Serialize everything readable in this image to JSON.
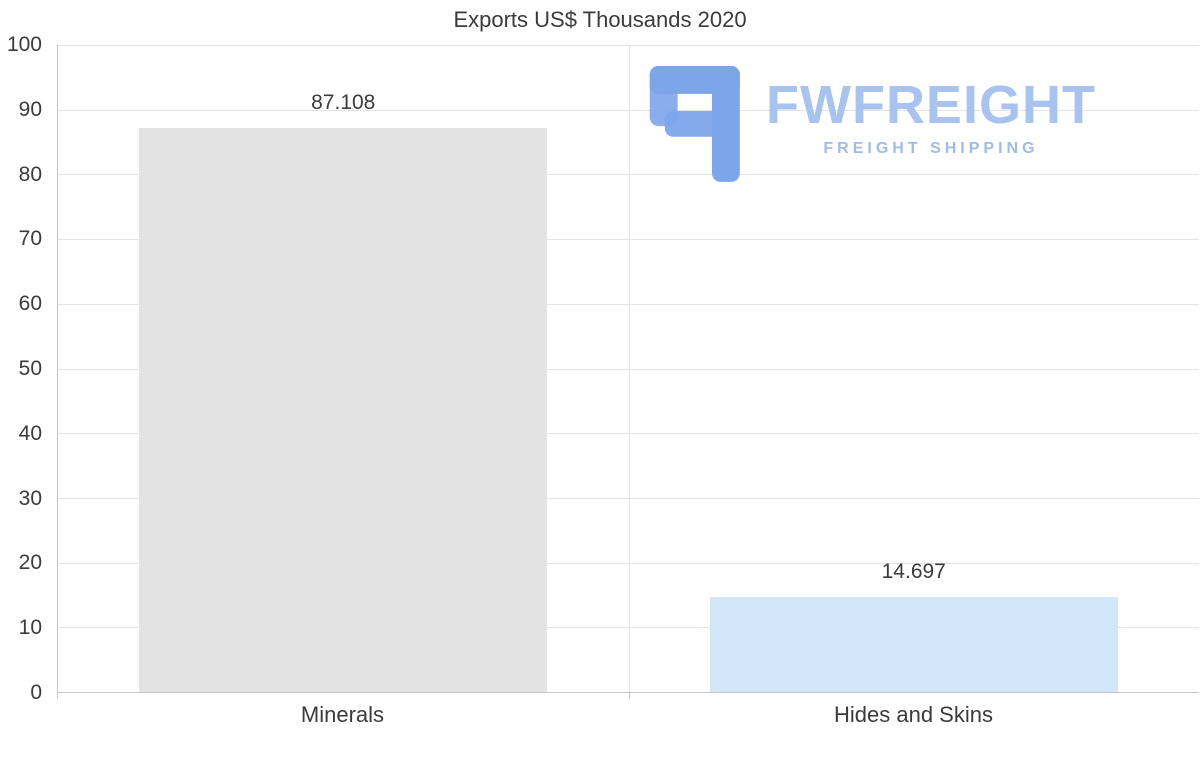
{
  "chart_data": {
    "type": "bar",
    "title": "Exports US$ Thousands 2020",
    "categories": [
      "Minerals",
      "Hides and Skins"
    ],
    "values": [
      87.108,
      14.697
    ],
    "value_labels": [
      "87.108",
      "14.697"
    ],
    "ylim": [
      0,
      100
    ],
    "yticks": [
      0,
      10,
      20,
      30,
      40,
      50,
      60,
      70,
      80,
      90,
      100
    ],
    "colors": [
      "#e3e3e3",
      "#d2e7f9"
    ],
    "grid": true,
    "legend": false,
    "xlabel": "",
    "ylabel": ""
  },
  "logo": {
    "brand": "FWFREIGHT",
    "tagline": "FREIGHT SHIPPING"
  },
  "colors": {
    "text": "#3b3b3b",
    "gridline": "#e4e4e4",
    "axis": "#c6c6c6",
    "background": "#ffffff",
    "logo_icon": "#7da5ea",
    "logo_brand": "#a8c3ef",
    "logo_tagline": "#9fbbeb"
  }
}
